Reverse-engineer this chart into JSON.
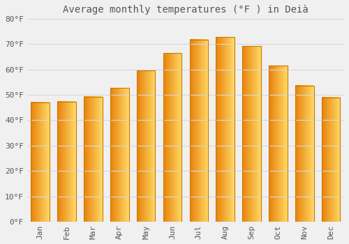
{
  "title": "Average monthly temperatures (°F ) in Deià",
  "months": [
    "Jan",
    "Feb",
    "Mar",
    "Apr",
    "May",
    "Jun",
    "Jul",
    "Aug",
    "Sep",
    "Oct",
    "Nov",
    "Dec"
  ],
  "values": [
    47.0,
    47.3,
    49.3,
    52.7,
    59.5,
    66.4,
    71.8,
    72.7,
    69.1,
    61.5,
    53.6,
    49.0
  ],
  "bar_color_left": "#E8820A",
  "bar_color_right": "#FFD966",
  "bar_edge_color": "#CC7700",
  "ylim": [
    0,
    80
  ],
  "yticks": [
    0,
    10,
    20,
    30,
    40,
    50,
    60,
    70,
    80
  ],
  "ytick_labels": [
    "0°F",
    "10°F",
    "20°F",
    "30°F",
    "40°F",
    "50°F",
    "60°F",
    "70°F",
    "80°F"
  ],
  "bg_color": "#f0f0f0",
  "grid_color": "#d8d8d8",
  "title_fontsize": 10,
  "tick_fontsize": 8,
  "tick_color": "#555555",
  "bar_width": 0.7
}
